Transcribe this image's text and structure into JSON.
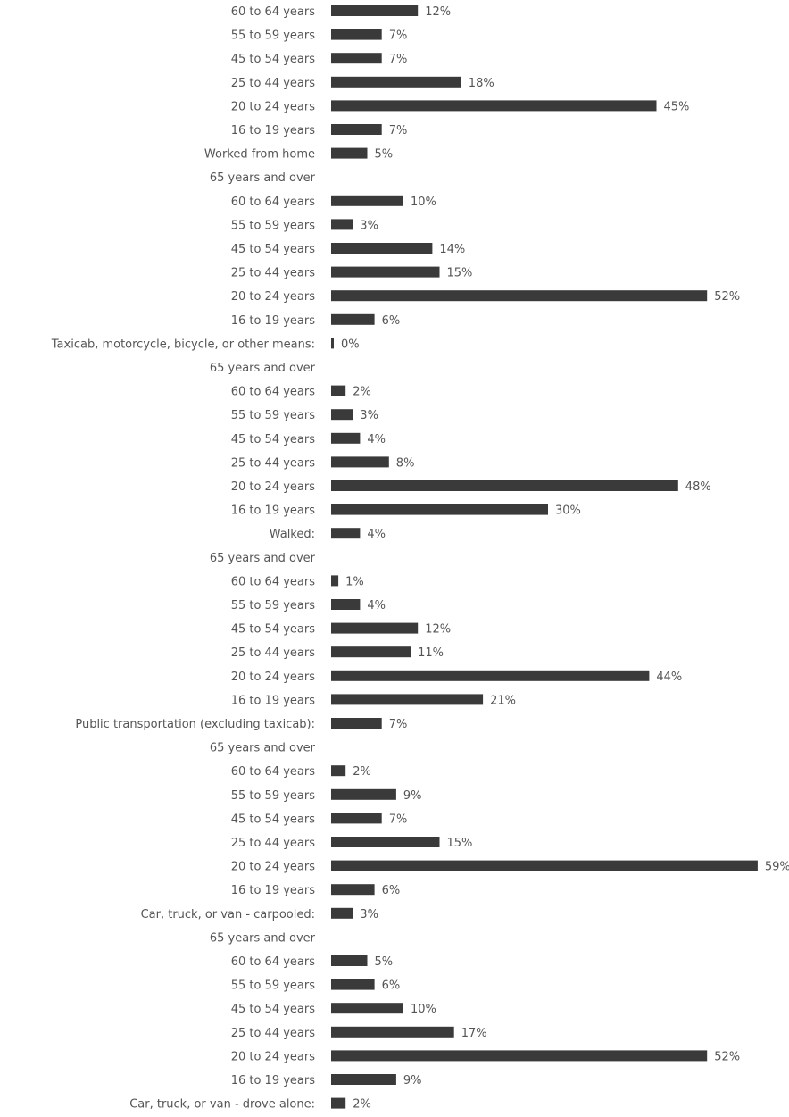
{
  "chart_data": {
    "type": "bar",
    "orientation": "horizontal",
    "categories": [
      "60 to 64 years",
      "55 to 59 years",
      "45 to 54 years",
      "25 to 44 years",
      "20 to 24 years",
      "16 to 19 years",
      "Worked from home",
      "65 years and over",
      "60 to 64 years",
      "55 to 59 years",
      "45 to 54 years",
      "25 to 44 years",
      "20 to 24 years",
      "16 to 19 years",
      "Taxicab, motorcycle, bicycle, or other means:",
      "65 years and over",
      "60 to 64 years",
      "55 to 59 years",
      "45 to 54 years",
      "25 to 44 years",
      "20 to 24 years",
      "16 to 19 years",
      "Walked:",
      "65 years and over",
      "60 to 64 years",
      "55 to 59 years",
      "45 to 54 years",
      "25 to 44 years",
      "20 to 24 years",
      "16 to 19 years",
      "Public transportation (excluding taxicab):",
      "65 years and over",
      "60 to 64 years",
      "55 to 59 years",
      "45 to 54 years",
      "25 to 44 years",
      "20 to 24 years",
      "16 to 19 years",
      "Car, truck, or van - carpooled:",
      "65 years and over",
      "60 to 64 years",
      "55 to 59 years",
      "45 to 54 years",
      "25 to 44 years",
      "20 to 24 years",
      "16 to 19 years",
      "Car, truck, or van - drove alone:"
    ],
    "values": [
      12,
      7,
      7,
      18,
      45,
      7,
      5,
      null,
      10,
      3,
      14,
      15,
      52,
      6,
      0,
      null,
      2,
      3,
      4,
      8,
      48,
      30,
      4,
      null,
      1,
      4,
      12,
      11,
      44,
      21,
      7,
      null,
      2,
      9,
      7,
      15,
      59,
      6,
      3,
      null,
      5,
      6,
      10,
      17,
      52,
      9,
      2
    ],
    "value_labels": [
      "12%",
      "7%",
      "7%",
      "18%",
      "45%",
      "7%",
      "5%",
      "",
      "10%",
      "3%",
      "14%",
      "15%",
      "52%",
      "6%",
      "0%",
      "",
      "2%",
      "3%",
      "4%",
      "8%",
      "48%",
      "30%",
      "4%",
      "",
      "1%",
      "4%",
      "12%",
      "11%",
      "44%",
      "21%",
      "7%",
      "",
      "2%",
      "9%",
      "7%",
      "15%",
      "59%",
      "6%",
      "3%",
      "",
      "5%",
      "6%",
      "10%",
      "17%",
      "52%",
      "9%",
      "2%"
    ],
    "xlim": [
      0,
      60
    ],
    "value_unit": "%",
    "grid": false,
    "bar_color": "#3a3a3a",
    "title": "",
    "xlabel": "",
    "ylabel": ""
  }
}
